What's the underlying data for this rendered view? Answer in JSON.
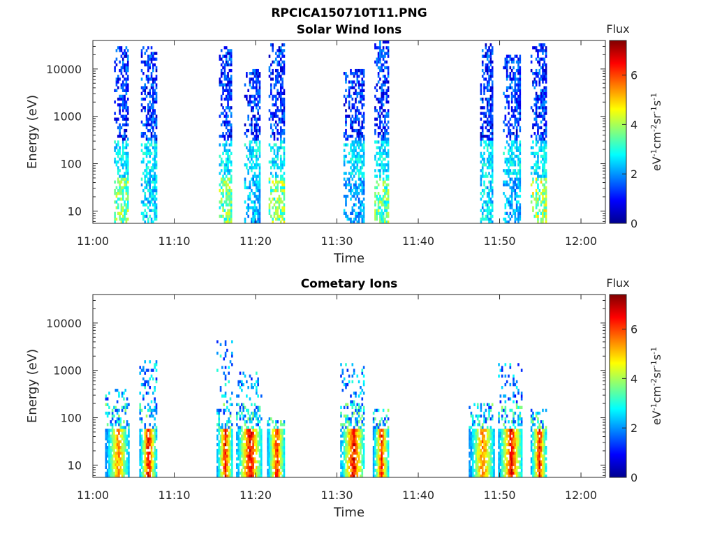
{
  "figure": {
    "title": "RPCICA150710T11.PNG"
  },
  "colorbar": {
    "label": "Flux",
    "units_prefix": "eV",
    "units_sup1": "-1",
    "units_mid1": "cm",
    "units_sup2": "-2",
    "units_mid2": "sr",
    "units_sup3": "-1",
    "units_mid3": "s",
    "units_sup4": "-1",
    "ticks": [
      "0",
      "2",
      "4",
      "6"
    ],
    "range": [
      0,
      7.4
    ],
    "colormap": "jet"
  },
  "chart_data": [
    {
      "type": "heatmap",
      "title": "Solar Wind Ions",
      "xlabel": "Time",
      "ylabel": "Energy (eV)",
      "xticks": [
        "11:00",
        "11:10",
        "11:20",
        "11:30",
        "11:40",
        "11:50",
        "12:00"
      ],
      "xlim_minutes": [
        0,
        63
      ],
      "yticks": [
        "10",
        "100",
        "1000",
        "10000"
      ],
      "ylim": [
        5.5,
        40000
      ],
      "yscale": "log",
      "bursts": [
        {
          "t_start_min": 2.6,
          "t_end_min": 4.4,
          "e_high": 30000,
          "peak_flux": 4.5
        },
        {
          "t_start_min": 5.9,
          "t_end_min": 7.8,
          "e_high": 30000,
          "peak_flux": 3.2
        },
        {
          "t_start_min": 15.5,
          "t_end_min": 17.0,
          "e_high": 30000,
          "peak_flux": 4.6
        },
        {
          "t_start_min": 18.6,
          "t_end_min": 20.6,
          "e_high": 10000,
          "peak_flux": 2.9
        },
        {
          "t_start_min": 21.6,
          "t_end_min": 23.6,
          "e_high": 33000,
          "peak_flux": 4.8
        },
        {
          "t_start_min": 30.8,
          "t_end_min": 33.3,
          "e_high": 10000,
          "peak_flux": 2.7
        },
        {
          "t_start_min": 34.6,
          "t_end_min": 36.4,
          "e_high": 40000,
          "peak_flux": 4.5
        },
        {
          "t_start_min": 47.6,
          "t_end_min": 49.2,
          "e_high": 35000,
          "peak_flux": 3.2
        },
        {
          "t_start_min": 50.4,
          "t_end_min": 52.6,
          "e_high": 20000,
          "peak_flux": 2.8
        },
        {
          "t_start_min": 53.8,
          "t_end_min": 55.8,
          "e_high": 35000,
          "peak_flux": 5.0
        }
      ]
    },
    {
      "type": "heatmap",
      "title": "Cometary Ions",
      "xlabel": "Time",
      "ylabel": "Energy (eV)",
      "xticks": [
        "11:00",
        "11:10",
        "11:20",
        "11:30",
        "11:40",
        "11:50",
        "12:00"
      ],
      "xlim_minutes": [
        0,
        63
      ],
      "yticks": [
        "10",
        "100",
        "1000",
        "10000"
      ],
      "ylim": [
        5.5,
        40000
      ],
      "yscale": "log",
      "bursts": [
        {
          "t_start_min": 1.5,
          "t_end_min": 4.5,
          "e_high": 400,
          "peak_flux": 6.2
        },
        {
          "t_start_min": 5.7,
          "t_end_min": 7.8,
          "e_high": 1600,
          "peak_flux": 7.4
        },
        {
          "t_start_min": 15.2,
          "t_end_min": 17.2,
          "e_high": 5800,
          "peak_flux": 7.2
        },
        {
          "t_start_min": 17.6,
          "t_end_min": 20.8,
          "e_high": 1000,
          "peak_flux": 7.4
        },
        {
          "t_start_min": 21.4,
          "t_end_min": 23.6,
          "e_high": 100,
          "peak_flux": 7.0
        },
        {
          "t_start_min": 30.4,
          "t_end_min": 33.4,
          "e_high": 1400,
          "peak_flux": 7.4
        },
        {
          "t_start_min": 34.4,
          "t_end_min": 36.4,
          "e_high": 150,
          "peak_flux": 6.9
        },
        {
          "t_start_min": 46.2,
          "t_end_min": 49.4,
          "e_high": 200,
          "peak_flux": 6.4
        },
        {
          "t_start_min": 49.8,
          "t_end_min": 52.8,
          "e_high": 1500,
          "peak_flux": 7.3
        },
        {
          "t_start_min": 53.8,
          "t_end_min": 55.8,
          "e_high": 150,
          "peak_flux": 7.0
        }
      ]
    }
  ]
}
